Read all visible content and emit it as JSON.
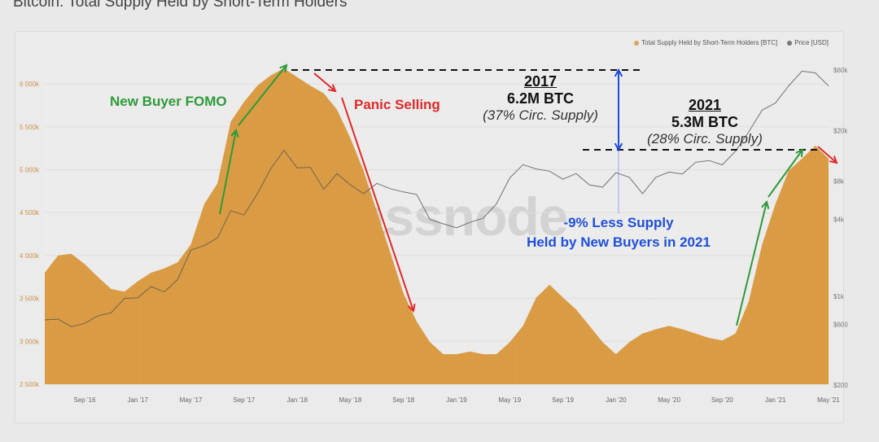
{
  "title": "Bitcoin: Total Supply Held by Short-Term Holders",
  "watermark": "glassnode",
  "colors": {
    "supply": "#d99a40",
    "price": "#7a7a7a",
    "green": "#2e9a3a",
    "red": "#e02a2a",
    "blue": "#1f4fd8"
  },
  "annotations": {
    "fomo": "New Buyer FOMO",
    "panic": "Panic Selling",
    "y2017": {
      "year": "2017",
      "amount": "6.2M BTC",
      "pct": "(37% Circ. Supply)"
    },
    "y2021": {
      "year": "2021",
      "amount": "5.3M BTC",
      "pct": "(28% Circ. Supply)"
    },
    "diff_line1": "-9% Less Supply",
    "diff_line2": "Held by New Buyers in 2021"
  },
  "chart_data": {
    "type": "area",
    "title": "Bitcoin: Total Supply Held by Short-Term Holders",
    "legend": [
      "Total Supply Held by Short-Term Holders [BTC]",
      "Price [USD]"
    ],
    "legend_position": "top-right",
    "x_ticks": [
      "Sep '16",
      "Jan '17",
      "May '17",
      "Sep '17",
      "Jan '18",
      "May '18",
      "Sep '18",
      "Jan '19",
      "May '19",
      "Sep '19",
      "Jan '20",
      "May '20",
      "Sep '20",
      "Jan '21",
      "May '21"
    ],
    "y_left_ticks": [
      "2 500k",
      "3 000k",
      "3 500k",
      "4 000k",
      "4 500k",
      "5 000k",
      "5 500k",
      "6 000k"
    ],
    "y_left_range": [
      2500,
      6200
    ],
    "y_right_ticks": [
      "$200",
      "$600",
      "$1k",
      "$4k",
      "$8k",
      "$20k",
      "$60k"
    ],
    "y_right_tick_values": [
      200,
      600,
      1000,
      4000,
      8000,
      20000,
      60000
    ],
    "y_right_scale": "log",
    "y_right_range": [
      200,
      60000
    ],
    "x_months": [
      "2016-06",
      "2016-07",
      "2016-08",
      "2016-09",
      "2016-10",
      "2016-11",
      "2016-12",
      "2017-01",
      "2017-02",
      "2017-03",
      "2017-04",
      "2017-05",
      "2017-06",
      "2017-07",
      "2017-08",
      "2017-09",
      "2017-10",
      "2017-11",
      "2017-12",
      "2018-01",
      "2018-02",
      "2018-03",
      "2018-04",
      "2018-05",
      "2018-06",
      "2018-07",
      "2018-08",
      "2018-09",
      "2018-10",
      "2018-11",
      "2018-12",
      "2019-01",
      "2019-02",
      "2019-03",
      "2019-04",
      "2019-05",
      "2019-06",
      "2019-07",
      "2019-08",
      "2019-09",
      "2019-10",
      "2019-11",
      "2019-12",
      "2020-01",
      "2020-02",
      "2020-03",
      "2020-04",
      "2020-05",
      "2020-06",
      "2020-07",
      "2020-08",
      "2020-09",
      "2020-10",
      "2020-11",
      "2020-12",
      "2021-01",
      "2021-02",
      "2021-03",
      "2021-04",
      "2021-05"
    ],
    "series": [
      {
        "name": "Total Supply Held by Short-Term Holders [BTC] (k)",
        "axis": "left",
        "values": [
          3800,
          4000,
          4020,
          3900,
          3750,
          3610,
          3580,
          3700,
          3800,
          3850,
          3920,
          4130,
          4600,
          4840,
          5560,
          5790,
          5980,
          6100,
          6180,
          6080,
          5980,
          5890,
          5700,
          5370,
          4990,
          4510,
          4040,
          3560,
          3230,
          2990,
          2850,
          2850,
          2880,
          2850,
          2850,
          2990,
          3180,
          3510,
          3660,
          3510,
          3370,
          3180,
          2990,
          2850,
          2990,
          3090,
          3140,
          3180,
          3140,
          3090,
          3040,
          3010,
          3090,
          3470,
          4130,
          4600,
          4990,
          5130,
          5280,
          5130
        ]
      },
      {
        "name": "Price [USD]",
        "axis": "right",
        "values": [
          650,
          660,
          575,
          610,
          700,
          740,
          960,
          970,
          1190,
          1080,
          1350,
          2300,
          2500,
          2870,
          4700,
          4340,
          6400,
          10000,
          14000,
          10200,
          10300,
          6900,
          9200,
          7500,
          6400,
          7700,
          7000,
          6600,
          6300,
          4000,
          3700,
          3450,
          3800,
          4100,
          5300,
          8500,
          10800,
          10000,
          9600,
          8300,
          9200,
          7500,
          7200,
          9350,
          8600,
          6400,
          8600,
          9450,
          9140,
          11300,
          11650,
          10780,
          13800,
          19700,
          29000,
          33000,
          45000,
          58800,
          57000,
          45000
        ]
      }
    ]
  }
}
